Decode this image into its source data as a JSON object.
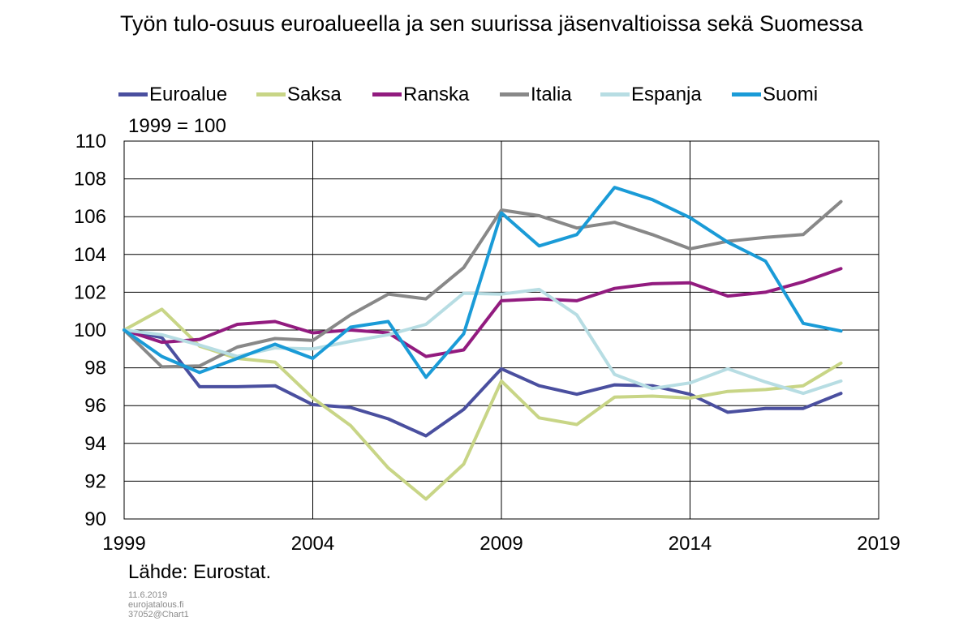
{
  "chart_data": {
    "type": "line",
    "title": "Työn tulo-osuus euroalueella ja sen suurissa jäsenvaltioissa sekä Suomessa",
    "unit_label": "1999 = 100",
    "ylim": [
      90,
      110
    ],
    "yticks": [
      90,
      92,
      94,
      96,
      98,
      100,
      102,
      104,
      106,
      108,
      110
    ],
    "xlim": [
      1999,
      2019
    ],
    "xticks": [
      1999,
      2004,
      2009,
      2014,
      2019
    ],
    "grid": true,
    "legend_position": "top",
    "x": [
      1999,
      2000,
      2001,
      2002,
      2003,
      2004,
      2005,
      2006,
      2007,
      2008,
      2009,
      2010,
      2011,
      2012,
      2013,
      2014,
      2015,
      2016,
      2017,
      2018
    ],
    "series": [
      {
        "name": "Euroalue",
        "color": "#4a4f9f",
        "values": [
          100,
          99.6,
          97.0,
          97.0,
          97.05,
          96.05,
          95.9,
          95.3,
          94.4,
          95.8,
          97.95,
          97.05,
          96.6,
          97.1,
          97.05,
          96.6,
          95.65,
          95.85,
          95.85,
          96.65
        ]
      },
      {
        "name": "Saksa",
        "color": "#c8d586",
        "values": [
          100,
          101.1,
          99.15,
          98.5,
          98.3,
          96.4,
          94.95,
          92.7,
          91.05,
          92.9,
          97.3,
          95.35,
          95.0,
          96.45,
          96.5,
          96.4,
          96.75,
          96.85,
          97.05,
          98.25
        ]
      },
      {
        "name": "Ranska",
        "color": "#921b7f",
        "values": [
          100,
          99.35,
          99.5,
          100.3,
          100.45,
          99.85,
          100.0,
          99.85,
          98.6,
          98.95,
          101.55,
          101.65,
          101.55,
          102.2,
          102.45,
          102.5,
          101.8,
          102.0,
          102.55,
          103.25
        ]
      },
      {
        "name": "Italia",
        "color": "#888888",
        "values": [
          100,
          98.05,
          98.1,
          99.1,
          99.55,
          99.45,
          100.8,
          101.9,
          101.65,
          103.3,
          106.35,
          106.05,
          105.4,
          105.7,
          105.05,
          104.3,
          104.7,
          104.9,
          105.05,
          106.8
        ]
      },
      {
        "name": "Espanja",
        "color": "#b7dde3",
        "values": [
          100,
          99.75,
          99.2,
          98.6,
          99.05,
          99.0,
          99.4,
          99.75,
          100.3,
          101.95,
          101.9,
          102.15,
          100.8,
          97.65,
          96.9,
          97.2,
          97.95,
          97.25,
          96.65,
          97.3
        ]
      },
      {
        "name": "Suomi",
        "color": "#1a9bd7",
        "values": [
          100,
          98.6,
          97.75,
          98.5,
          99.25,
          98.5,
          100.15,
          100.45,
          97.5,
          99.8,
          106.2,
          104.45,
          105.05,
          107.55,
          106.9,
          105.95,
          104.65,
          103.65,
          100.35,
          99.95
        ]
      }
    ]
  },
  "source": "Lähde: Eurostat.",
  "footnote": [
    "11.6.2019",
    "eurojatalous.fi",
    "37052@Chart1"
  ]
}
